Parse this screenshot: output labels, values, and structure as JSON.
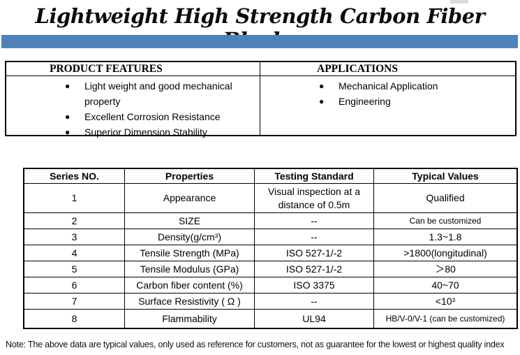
{
  "page": {
    "title": "Lightweight High Strength Carbon Fiber Blocks",
    "accent_color": "#4f81bd",
    "note": "Note: The above data are typical values, only used as reference for customers, not as guarantee for the lowest or highest quality index"
  },
  "features_table": {
    "bullet_icon": "●",
    "left": {
      "header": "PRODUCT FEATURES",
      "items": [
        "Light weight and good mechanical property",
        "Excellent Corrosion Resistance",
        "Superior Dimension Stability"
      ]
    },
    "right": {
      "header": "APPLICATIONS",
      "items": [
        "Mechanical Application",
        "Engineering"
      ]
    }
  },
  "spec_table": {
    "headers": [
      "Series NO.",
      "Properties",
      "Testing Standard",
      "Typical Values"
    ],
    "rows": [
      {
        "no": "1",
        "property": "Appearance",
        "standard": "Visual inspection at a distance of 0.5m",
        "value": "Qualified"
      },
      {
        "no": "2",
        "property": "SIZE",
        "standard": "--",
        "value": "Can be customized"
      },
      {
        "no": "3",
        "property": "Density(g/cm³)",
        "standard": "--",
        "value": "1.3~1.8"
      },
      {
        "no": "4",
        "property": "Tensile Strength (MPa)",
        "standard": "ISO 527-1/-2",
        "value": ">1800(longitudinal)"
      },
      {
        "no": "5",
        "property": "Tensile Modulus (GPa)",
        "standard": "ISO 527-1/-2",
        "value": "＞80"
      },
      {
        "no": "6",
        "property": "Carbon fiber content (%)",
        "standard": "ISO 3375",
        "value": "40~70"
      },
      {
        "no": "7",
        "property": "Surface Resistivity ( Ω )",
        "standard": "--",
        "value": "<10³"
      },
      {
        "no": "8",
        "property": "Flammability",
        "standard": "UL94",
        "value": "HB/V-0/V-1 (can be customized)"
      }
    ]
  }
}
